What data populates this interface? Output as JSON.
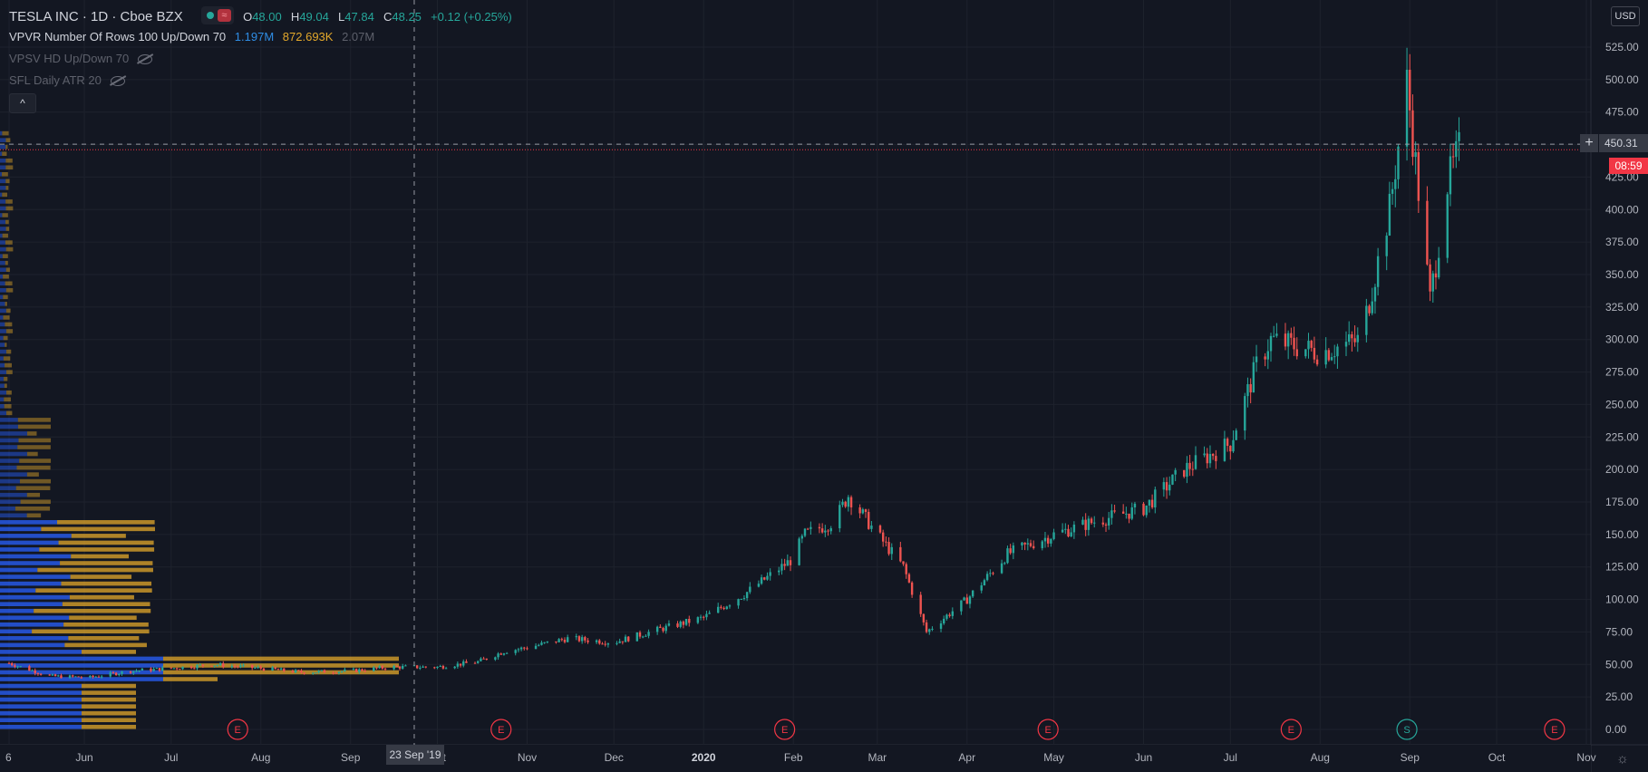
{
  "legend": {
    "symbol": "TESLA INC · 1D · Cboe BZX",
    "status_icon": "≈",
    "o_label": "O",
    "o_value": "48.00",
    "h_label": "H",
    "h_value": "49.04",
    "l_label": "L",
    "l_value": "47.84",
    "c_label": "C",
    "c_value": "48.25",
    "change": "+0.12 (+0.25%)",
    "vpvr_label": "VPVR Number Of Rows 100 Up/Down 70",
    "vpvr_up": "1.197M",
    "vpvr_down": "872.693K",
    "vpvr_total": "2.07M",
    "vpsv_label": "VPSV HD Up/Down 70",
    "sfl_label": "SFL Daily ATR 20",
    "collapse_icon": "chevron-up-icon"
  },
  "currency": "USD",
  "crosshair": {
    "date": "23 Sep '19",
    "price": "450.31"
  },
  "last_price_countdown": "08:59",
  "colors": {
    "bg": "#131722",
    "up": "#26a69a",
    "down": "#ef5350",
    "vol_up": "#2962ff",
    "vol_down": "#e3a82b",
    "grid": "#1e222d"
  },
  "chart_data": {
    "type": "candlestick",
    "price_ticks": [
      "525.00",
      "500.00",
      "475.00",
      "450.00",
      "425.00",
      "400.00",
      "375.00",
      "350.00",
      "325.00",
      "300.00",
      "275.00",
      "250.00",
      "225.00",
      "200.00",
      "175.00",
      "150.00",
      "125.00",
      "100.00",
      "75.00",
      "50.00",
      "25.00",
      "0.00"
    ],
    "time_ticks": [
      "6",
      "Jun",
      "Jul",
      "Aug",
      "Sep",
      "Oct",
      "Nov",
      "Dec",
      "2020",
      "Feb",
      "Mar",
      "Apr",
      "May",
      "Jun",
      "Jul",
      "Aug",
      "Sep",
      "Oct",
      "Nov"
    ],
    "events": [
      {
        "label": "E"
      },
      {
        "label": "E"
      },
      {
        "label": "E"
      },
      {
        "label": "E"
      },
      {
        "label": "E"
      },
      {
        "label": "S"
      },
      {
        "label": "E"
      }
    ],
    "last_price": 446,
    "series_close": [
      {
        "d": "2019-05-06",
        "c": 51
      },
      {
        "d": "2019-05-20",
        "c": 41
      },
      {
        "d": "2019-06-03",
        "c": 40
      },
      {
        "d": "2019-06-17",
        "c": 45
      },
      {
        "d": "2019-07-01",
        "c": 47
      },
      {
        "d": "2019-07-15",
        "c": 50
      },
      {
        "d": "2019-08-01",
        "c": 47
      },
      {
        "d": "2019-08-15",
        "c": 44
      },
      {
        "d": "2019-09-01",
        "c": 45
      },
      {
        "d": "2019-09-15",
        "c": 48
      },
      {
        "d": "2019-10-01",
        "c": 48
      },
      {
        "d": "2019-10-15",
        "c": 52
      },
      {
        "d": "2019-10-24",
        "c": 60
      },
      {
        "d": "2019-11-01",
        "c": 63
      },
      {
        "d": "2019-11-15",
        "c": 70
      },
      {
        "d": "2019-12-01",
        "c": 67
      },
      {
        "d": "2019-12-15",
        "c": 76
      },
      {
        "d": "2020-01-01",
        "c": 86
      },
      {
        "d": "2020-01-15",
        "c": 104
      },
      {
        "d": "2020-01-31",
        "c": 130
      },
      {
        "d": "2020-02-05",
        "c": 150
      },
      {
        "d": "2020-02-15",
        "c": 160
      },
      {
        "d": "2020-02-20",
        "c": 180
      },
      {
        "d": "2020-03-01",
        "c": 150
      },
      {
        "d": "2020-03-10",
        "c": 125
      },
      {
        "d": "2020-03-18",
        "c": 75
      },
      {
        "d": "2020-04-01",
        "c": 100
      },
      {
        "d": "2020-04-15",
        "c": 135
      },
      {
        "d": "2020-05-01",
        "c": 150
      },
      {
        "d": "2020-05-15",
        "c": 160
      },
      {
        "d": "2020-06-01",
        "c": 170
      },
      {
        "d": "2020-06-15",
        "c": 200
      },
      {
        "d": "2020-07-01",
        "c": 220
      },
      {
        "d": "2020-07-10",
        "c": 280
      },
      {
        "d": "2020-07-15",
        "c": 300
      },
      {
        "d": "2020-08-01",
        "c": 290
      },
      {
        "d": "2020-08-15",
        "c": 300
      },
      {
        "d": "2020-08-25",
        "c": 400
      },
      {
        "d": "2020-08-31",
        "c": 498
      },
      {
        "d": "2020-09-08",
        "c": 330
      },
      {
        "d": "2020-09-14",
        "c": 420
      },
      {
        "d": "2020-09-18",
        "c": 446
      }
    ]
  }
}
